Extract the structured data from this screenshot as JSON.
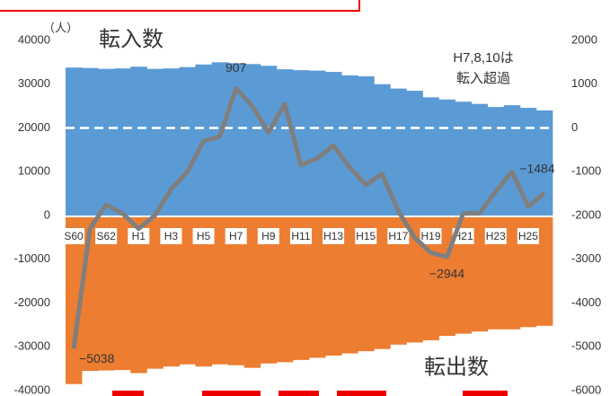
{
  "chart_data": {
    "type": "bar-line",
    "y_label": "（人）",
    "annotations": [
      "H7,8,10は",
      "転入超過"
    ],
    "categories": [
      "S60",
      null,
      "S62",
      null,
      "H1",
      null,
      "H3",
      null,
      "H5",
      null,
      "H7",
      null,
      "H9",
      null,
      "H11",
      null,
      "H13",
      null,
      "H15",
      null,
      "H17",
      null,
      "H19",
      null,
      "H21",
      null,
      "H23",
      null,
      "H25",
      null
    ],
    "series": [
      {
        "name": "転入数",
        "color": "#5b9bd5",
        "values": [
          33800,
          33700,
          33500,
          33600,
          34000,
          33500,
          33600,
          33900,
          34500,
          35000,
          34800,
          34600,
          34200,
          33400,
          33200,
          33100,
          32800,
          32000,
          31800,
          30000,
          29000,
          28500,
          27000,
          26500,
          26000,
          25500,
          24800,
          25200,
          24600,
          24000
        ]
      },
      {
        "name": "転出数",
        "color": "#ed7d31",
        "values": [
          -38500,
          -35500,
          -35400,
          -35300,
          -36000,
          -35000,
          -34500,
          -34000,
          -34500,
          -34000,
          -34200,
          -34800,
          -33800,
          -33500,
          -33000,
          -32500,
          -32000,
          -31500,
          -31000,
          -30500,
          -29500,
          -29000,
          -28500,
          -27500,
          -27000,
          -26500,
          -26000,
          -26000,
          -25500,
          -25200
        ]
      },
      {
        "color": "#7f7f7f",
        "axis": "y2",
        "values": [
          -5038,
          -2300,
          -1750,
          -1950,
          -2300,
          -2000,
          -1400,
          -1000,
          -300,
          -200,
          907,
          500,
          -100,
          550,
          -850,
          -700,
          -400,
          -900,
          -1300,
          -1050,
          -1900,
          -2500,
          -2850,
          -2944,
          -1950,
          -1950,
          -1450,
          -1000,
          -1800,
          -1484
        ],
        "value_labels": [
          "−5038",
          null,
          null,
          null,
          null,
          null,
          null,
          null,
          null,
          null,
          "907",
          null,
          null,
          null,
          null,
          null,
          null,
          null,
          null,
          null,
          null,
          null,
          null,
          "−2944",
          null,
          null,
          null,
          null,
          null,
          "−1484"
        ]
      }
    ],
    "ylim": [
      -40000,
      40000
    ],
    "yticks": [
      -40000,
      -30000,
      -20000,
      -10000,
      0,
      10000,
      20000,
      30000,
      40000
    ],
    "y2lim": [
      -6000,
      2000
    ],
    "y2ticks": [
      -6000,
      -5000,
      -4000,
      -3000,
      -2000,
      -1000,
      0,
      1000,
      2000
    ]
  }
}
